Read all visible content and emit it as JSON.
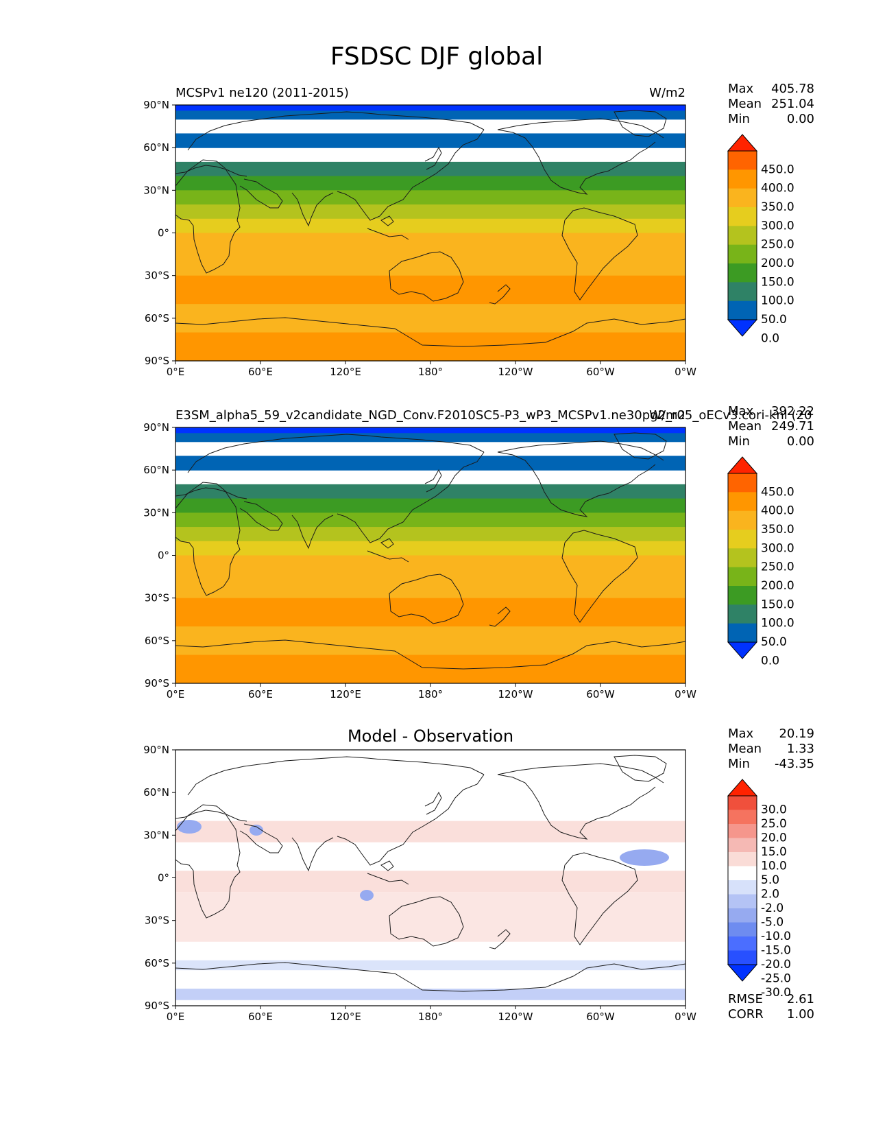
{
  "figure": {
    "title": "FSDSC DJF global"
  },
  "colors": {
    "levels_abs": [
      "#0032ff",
      "#0064b4",
      "#2f8266",
      "#3c9b23",
      "#78b419",
      "#b4c31e",
      "#e6cd1e",
      "#fab41e",
      "#ff9600",
      "#ff6400",
      "#ff2300"
    ],
    "levels_diff": [
      "#0032ff",
      "#2850ff",
      "#4b6eff",
      "#6e8cf0",
      "#96aaf0",
      "#b4c3f5",
      "#d7e1fa",
      "#ffffff",
      "#fadcd7",
      "#f5b9b4",
      "#f5968c",
      "#f5735f",
      "#f0503c",
      "#ff2300"
    ]
  },
  "chart_data": [
    {
      "type": "heatmap",
      "variable": "FSDSC",
      "left_title": "MCSPv1 ne120 (2011-2015)",
      "right_title": "W/m2",
      "stats": {
        "Max": "405.78",
        "Mean": "251.04",
        "Min": "0.00"
      },
      "colorbar_ticks": [
        "450.0",
        "400.0",
        "350.0",
        "300.0",
        "250.0",
        "200.0",
        "150.0",
        "100.0",
        "50.0",
        "0.0"
      ],
      "x_ticks": [
        "0°E",
        "60°E",
        "120°E",
        "180°",
        "120°W",
        "60°W",
        "0°W"
      ],
      "y_ticks": [
        "90°N",
        "60°N",
        "30°N",
        "0°",
        "30°S",
        "60°S",
        "90°S"
      ],
      "xlim": [
        0,
        360
      ],
      "ylim": [
        -90,
        90
      ],
      "zonal_profile": {
        "lat": [
          85,
          65,
          45,
          35,
          25,
          15,
          5,
          -5,
          -15,
          -25,
          -35,
          -45,
          -55,
          -65,
          -75,
          -85
        ],
        "value": [
          10,
          30,
          80,
          130,
          180,
          230,
          270,
          300,
          320,
          340,
          360,
          370,
          345,
          330,
          360,
          360
        ]
      }
    },
    {
      "type": "heatmap",
      "variable": "FSDSC",
      "left_title": "E3SM_alpha5_59_v2candidate_NGD_Conv.F2010SC5-P3_wP3_MCSPv1.ne30pg2_r05_oECv3.cori-knl (20",
      "right_title": "W/m2",
      "stats": {
        "Max": "392.22",
        "Mean": "249.71",
        "Min": "0.00"
      },
      "colorbar_ticks": [
        "450.0",
        "400.0",
        "350.0",
        "300.0",
        "250.0",
        "200.0",
        "150.0",
        "100.0",
        "50.0",
        "0.0"
      ],
      "x_ticks": [
        "0°E",
        "60°E",
        "120°E",
        "180°",
        "120°W",
        "60°W",
        "0°W"
      ],
      "y_ticks": [
        "90°N",
        "60°N",
        "30°N",
        "0°",
        "30°S",
        "60°S",
        "90°S"
      ],
      "xlim": [
        0,
        360
      ],
      "ylim": [
        -90,
        90
      ],
      "zonal_profile": {
        "lat": [
          85,
          65,
          45,
          35,
          25,
          15,
          5,
          -5,
          -15,
          -25,
          -35,
          -45,
          -55,
          -65,
          -75,
          -85
        ],
        "value": [
          10,
          30,
          80,
          130,
          180,
          230,
          270,
          300,
          320,
          340,
          360,
          370,
          345,
          330,
          355,
          355
        ]
      }
    },
    {
      "type": "heatmap",
      "variable": "FSDSC difference",
      "center_title": "Model - Observation",
      "stats": {
        "Max": "20.19",
        "Mean": "1.33",
        "Min": "-43.35"
      },
      "metrics": {
        "RMSE": "2.61",
        "CORR": "1.00"
      },
      "colorbar_ticks": [
        "30.0",
        "25.0",
        "20.0",
        "15.0",
        "10.0",
        "5.0",
        "2.0",
        "-2.0",
        "-5.0",
        "-10.0",
        "-15.0",
        "-20.0",
        "-25.0",
        "-30.0"
      ],
      "x_ticks": [
        "0°E",
        "60°E",
        "120°E",
        "180°",
        "120°W",
        "60°W",
        "0°W"
      ],
      "y_ticks": [
        "90°N",
        "60°N",
        "30°N",
        "0°",
        "30°S",
        "60°S",
        "90°S"
      ],
      "xlim": [
        0,
        360
      ],
      "ylim": [
        -90,
        90
      ]
    }
  ]
}
